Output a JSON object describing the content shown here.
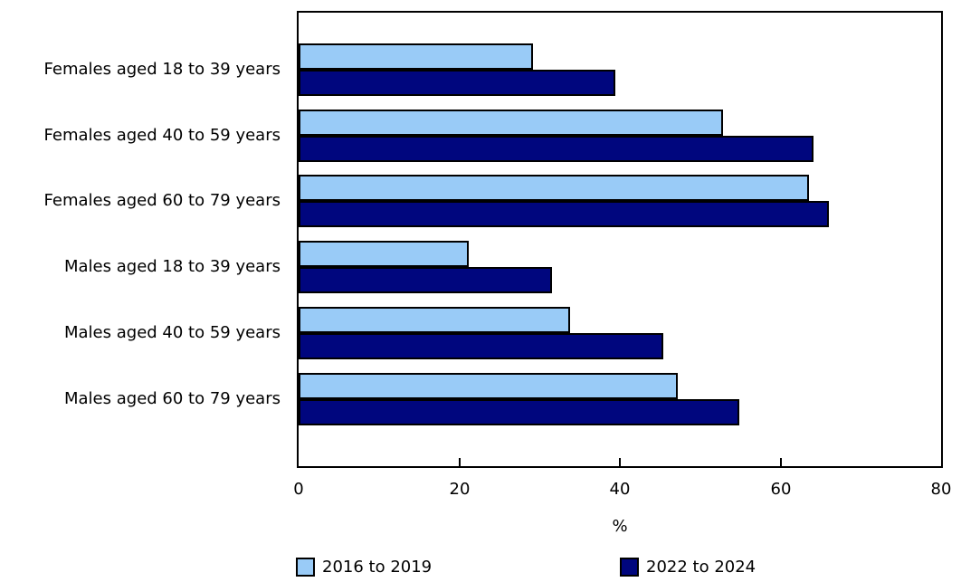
{
  "chart_data": {
    "type": "bar",
    "orientation": "horizontal",
    "title": "",
    "categories": [
      "Females aged 18 to 39 years",
      "Females aged 40 to 59 years",
      "Females aged 60 to 79 years",
      "Males aged 18 to 39 years",
      "Males aged 40 to 59 years",
      "Males aged 60 to 79 years"
    ],
    "series": [
      {
        "name": "2016 to 2019",
        "color": "#99cbf7",
        "values": [
          29.2,
          52.8,
          63.6,
          21.2,
          33.8,
          47.2
        ]
      },
      {
        "name": "2022 to 2024",
        "color": "#00067e",
        "values": [
          39.4,
          64.1,
          66.0,
          31.5,
          45.4,
          54.9
        ]
      }
    ],
    "xlabel": "%",
    "xlim": [
      0,
      80
    ],
    "xticks": [
      0,
      20,
      40,
      60,
      80
    ],
    "grid": false,
    "legend_position": "bottom",
    "bar_border_color": "#000000",
    "axis_color": "#000000",
    "background_color": "#ffffff"
  }
}
